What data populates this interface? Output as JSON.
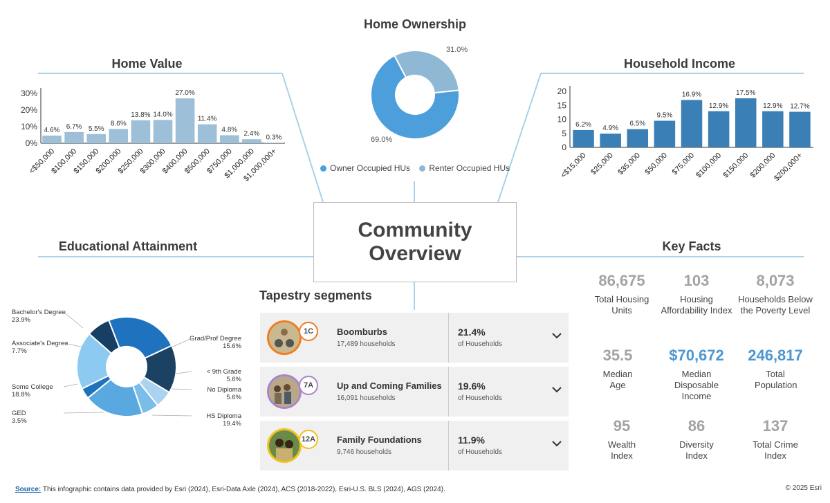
{
  "center_title": {
    "line1": "Community",
    "line2": "Overview"
  },
  "colors": {
    "line": "#a9d1e8",
    "home_value_bar": "#9dbfd8",
    "income_bar": "#3a7fb6",
    "owner": "#4d9fdb",
    "renter": "#8fb8d5",
    "kf_blue": "#4b97d1"
  },
  "home_value": {
    "title": "Home Value",
    "chart_data": {
      "type": "bar",
      "title": "Home Value",
      "categories": [
        "<$50,000",
        "$100,000",
        "$150,000",
        "$200,000",
        "$250,000",
        "$300,000",
        "$400,000",
        "$500,000",
        "$750,000",
        "$1,000,000",
        "$1,000,000+"
      ],
      "values": [
        4.6,
        6.7,
        5.5,
        8.6,
        13.8,
        14.0,
        27.0,
        11.4,
        4.8,
        2.4,
        0.3
      ],
      "data_labels": [
        "4.6%",
        "6.7%",
        "5.5%",
        "8.6%",
        "13.8%",
        "14.0%",
        "27.0%",
        "11.4%",
        "4.8%",
        "2.4%",
        "0.3%"
      ],
      "y_ticks": [
        "0%",
        "10%",
        "20%",
        "30%"
      ],
      "ylim": [
        0,
        30
      ]
    }
  },
  "home_ownership": {
    "title": "Home Ownership",
    "chart_data": {
      "type": "pie",
      "title": "Home Ownership",
      "labels": [
        "Owner Occupied HUs",
        "Renter Occupied HUs"
      ],
      "values": [
        69.0,
        31.0
      ],
      "data_labels": [
        "69.0%",
        "31.0%"
      ]
    }
  },
  "household_income": {
    "title": "Household Income",
    "chart_data": {
      "type": "bar",
      "title": "Household Income",
      "categories": [
        "<$15,000",
        "$25,000",
        "$35,000",
        "$50,000",
        "$75,000",
        "$100,000",
        "$150,000",
        "$200,000",
        "$200,000+"
      ],
      "values": [
        6.2,
        4.9,
        6.5,
        9.5,
        16.9,
        12.9,
        17.5,
        12.9,
        12.7
      ],
      "data_labels": [
        "6.2%",
        "4.9%",
        "6.5%",
        "9.5%",
        "16.9%",
        "12.9%",
        "17.5%",
        "12.9%",
        "12.7%"
      ],
      "y_ticks": [
        "0",
        "5",
        "10",
        "15",
        "20"
      ],
      "ylim": [
        0,
        20
      ]
    }
  },
  "education": {
    "title": "Educational Attainment",
    "chart_data": {
      "type": "pie",
      "title": "Educational Attainment",
      "labels": [
        "Bachelor's Degree",
        "Grad/Prof Degree",
        "< 9th Grade",
        "No Diploma",
        "HS Diploma",
        "GED",
        "Some College",
        "Associate's Degree"
      ],
      "values": [
        23.9,
        15.6,
        5.6,
        5.6,
        19.4,
        3.5,
        18.8,
        7.7
      ],
      "data_labels": [
        "23.9%",
        "15.6%",
        "5.6%",
        "5.6%",
        "19.4%",
        "3.5%",
        "18.8%",
        "7.7%"
      ],
      "colors": [
        "#1f73be",
        "#1b4163",
        "#a9d3f0",
        "#7bbce8",
        "#5aa8e0",
        "#1f73be",
        "#8ccaf2",
        "#173f63"
      ]
    }
  },
  "tapestry": {
    "title": "Tapestry segments",
    "segments": [
      {
        "code": "1C",
        "name": "Boomburbs",
        "households": "17,489 households",
        "pct": "21.4%",
        "pct_label": "of Households",
        "color": "#f07d22"
      },
      {
        "code": "7A",
        "name": "Up and Coming Families",
        "households": "16,091 households",
        "pct": "19.6%",
        "pct_label": "of Households",
        "color": "#a884c8"
      },
      {
        "code": "12A",
        "name": "Family Foundations",
        "households": "9,746 households",
        "pct": "11.9%",
        "pct_label": "of Households",
        "color": "#f1c21b"
      }
    ]
  },
  "key_facts": {
    "title": "Key Facts",
    "items": [
      {
        "value": "86,675",
        "label": "Total Housing Units"
      },
      {
        "value": "103",
        "label": "Housing Affordability Index"
      },
      {
        "value": "8,073",
        "label": "Households Below the Poverty Level"
      },
      {
        "value": "35.5",
        "label": "Median Age"
      },
      {
        "value": "$70,672",
        "label": "Median Disposable Income"
      },
      {
        "value": "246,817",
        "label": "Total Population"
      },
      {
        "value": "95",
        "label": "Wealth Index"
      },
      {
        "value": "86",
        "label": "Diversity Index"
      },
      {
        "value": "137",
        "label": "Total Crime Index"
      }
    ]
  },
  "footer": {
    "source_label": "Source:",
    "source_text": " This infographic contains data provided by Esri (2024), Esri-Data Axle (2024), ACS (2018-2022), Esri-U.S. BLS (2024), AGS (2024).",
    "copyright": "© 2025 Esri"
  }
}
